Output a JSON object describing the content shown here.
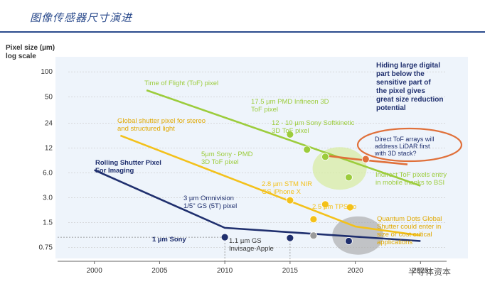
{
  "header": {
    "title": "图像传感器尺寸演进"
  },
  "watermark": "半导体资本",
  "chart_data": {
    "type": "line",
    "ylabel": "Pixel size (µm)",
    "ylabel2": "log scale",
    "yscale": "log",
    "xlim": [
      1998,
      2027
    ],
    "ylim": [
      0.6,
      120
    ],
    "x_ticks": [
      2000,
      2005,
      2010,
      2015,
      2020,
      2025
    ],
    "y_ticks": [
      100,
      50,
      24,
      12,
      6.0,
      3.0,
      1.5,
      0.75
    ],
    "y_tick_labels": [
      "100",
      "50",
      "24",
      "12",
      "6.0",
      "3.0",
      "1.5",
      "0.75"
    ],
    "series": [
      {
        "name": "Time of Flight (ToF) pixel",
        "color": "#9ccc3c",
        "x": [
          2004,
          2025
        ],
        "y": [
          60,
          4.2
        ]
      },
      {
        "name": "Global shutter pixel for stereo and structured light",
        "color": "#f3c11b",
        "x": [
          2002,
          2020,
          2025
        ],
        "y": [
          17,
          1.35,
          1.05
        ]
      },
      {
        "name": "Rolling Shutter Pixel For Imaging",
        "color": "#1f2f6e",
        "x": [
          2000,
          2010,
          2025
        ],
        "y": [
          6.5,
          1.3,
          0.9
        ]
      },
      {
        "name": "Direct ToF arrays",
        "color": "#e0703a",
        "x": [
          2018,
          2020,
          2024
        ],
        "y": [
          9.6,
          8.8,
          7.6
        ]
      }
    ],
    "points": [
      {
        "label": "17.5 µm PMD Infineon 3D ToF pixel",
        "x": 2015,
        "y": 17.5,
        "color": "#9ccc3c"
      },
      {
        "label": "12 - 10 µm Sony Softkinetic 3D ToF pixel",
        "x": 2016.3,
        "y": 11.5,
        "color": "#9ccc3c"
      },
      {
        "label": "5µm Sony - PMD 3D ToF pixel",
        "x": 2017.7,
        "y": 9.4,
        "color": "#9ccc3c"
      },
      {
        "label": "",
        "x": 2019.5,
        "y": 5.3,
        "color": "#9ccc3c"
      },
      {
        "label": "3 µm Omnivision 1/5\" GS (5T) pixel",
        "x": 2015,
        "y": 2.8,
        "color": "#f3c11b"
      },
      {
        "label": "2.8 µm STM NIR GS iPhone X",
        "x": 2017.7,
        "y": 2.5,
        "color": "#f3c11b"
      },
      {
        "label": "2.5 µm TPSCo",
        "x": 2019.6,
        "y": 2.3,
        "color": "#f3c11b"
      },
      {
        "label": "",
        "x": 2016.8,
        "y": 1.65,
        "color": "#f3c11b"
      },
      {
        "label": "1 µm Sony",
        "x": 2010,
        "y": 1.0,
        "color": "#1f2f6e"
      },
      {
        "label": "1.1 µm GS Invisage-Apple",
        "x": 2015,
        "y": 0.98,
        "color": "#1f2f6e"
      },
      {
        "label": "",
        "x": 2016.8,
        "y": 1.05,
        "color": "#9a9a9a"
      },
      {
        "label": "",
        "x": 2019.5,
        "y": 0.9,
        "color": "#1f2f6e"
      },
      {
        "label": "",
        "x": 2020.8,
        "y": 8.8,
        "color": "#e0703a"
      }
    ],
    "annotations": {
      "hiding": "Hiding large digital part below the sensitive part of the pixel gives great size reduction potential",
      "direct_tof": "Direct ToF arrays will address LiDAR first with 3D stack?",
      "indirect_tof": "Indirect ToF pixels entry in mobile thanks to BSI",
      "quantum_dots": "Quantum Dots Global Shutter could enter in size or cost critical applications"
    },
    "colors": {
      "tof": "#9ccc3c",
      "global_shutter": "#f3c11b",
      "rolling_shutter": "#1f2f6e",
      "direct_tof": "#e0703a",
      "gray_blob": "#9a9a9a",
      "text_blue": "#1f2f6e"
    }
  }
}
